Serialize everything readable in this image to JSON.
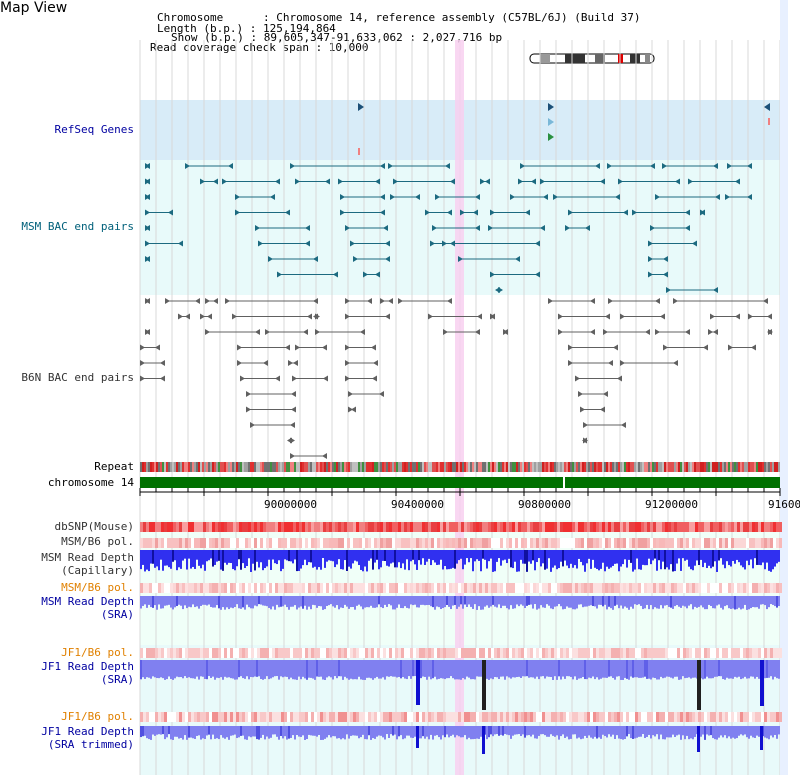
{
  "page": {
    "title": "Map View"
  },
  "info": {
    "chromosome": "Chromosome      : Chromosome 14, reference assembly (C57BL/6J) (Build 37)",
    "length": "Length (b.p.) : 125,194,864",
    "show": "Show (b.p.) : 89,605,347-91,633,062 : 2,027,716 bp",
    "read_span": "Read coverage check span : 10,000"
  },
  "tracks": {
    "refseq": "RefSeq Genes",
    "msm_bac": "MSM BAC end pairs",
    "b6n_bac": "B6N BAC end pairs",
    "repeat": "Repeat",
    "chromosome": "chromosome 14",
    "dbsnp": "dbSNP(Mouse)",
    "msm_b6_pol_1": "MSM/B6 pol.",
    "msm_depth_cap_1": "MSM Read Depth",
    "msm_depth_cap_2": "(Capillary)",
    "msm_b6_pol_2": "MSM/B6 pol.",
    "msm_depth_sra_1": "MSM Read Depth",
    "msm_depth_sra_2": "(SRA)",
    "jf1_b6_pol_1": "JF1/B6 pol.",
    "jf1_depth_sra_1": "JF1 Read Depth",
    "jf1_depth_sra_2": "(SRA)",
    "jf1_b6_pol_2": "JF1/B6 pol.",
    "jf1_depth_trim_1": "JF1 Read Depth",
    "jf1_depth_trim_2": "(SRA trimmed)"
  },
  "axis": {
    "ticks": [
      "90000000",
      "90400000",
      "90800000",
      "91200000",
      "91600"
    ]
  },
  "colors": {
    "refseq_bg": "#d8ecf8",
    "bac_bg": "#e8fafa",
    "highlight": "#f8d0f0",
    "chromosome_bar": "#007000",
    "depth_blue": "#3030f0",
    "depth_light": "#8080f0",
    "snp_red": "#e03030"
  }
}
